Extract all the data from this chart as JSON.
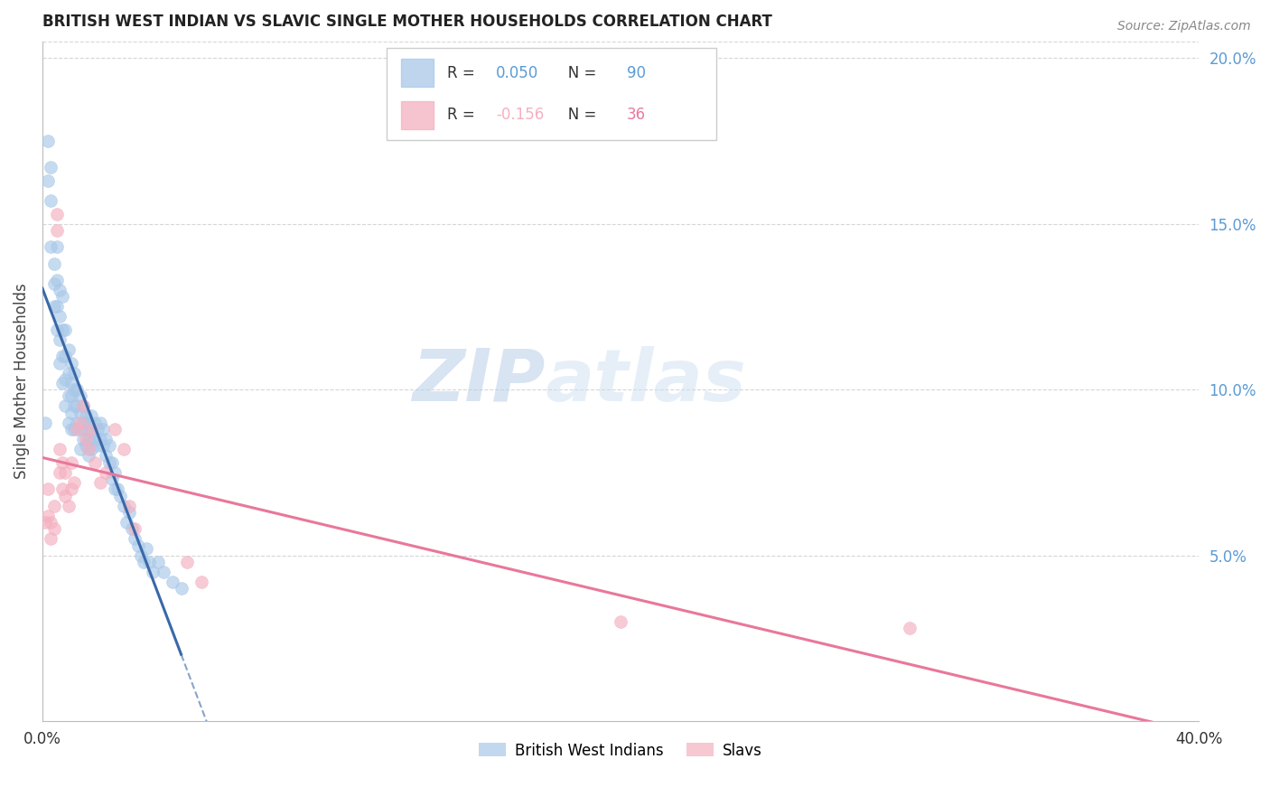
{
  "title": "BRITISH WEST INDIAN VS SLAVIC SINGLE MOTHER HOUSEHOLDS CORRELATION CHART",
  "source": "Source: ZipAtlas.com",
  "ylabel": "Single Mother Households",
  "xlim": [
    0.0,
    0.4
  ],
  "ylim": [
    0.0,
    0.205
  ],
  "xticks": [
    0.0,
    0.05,
    0.1,
    0.15,
    0.2,
    0.25,
    0.3,
    0.35,
    0.4
  ],
  "xticklabels": [
    "0.0%",
    "",
    "",
    "",
    "",
    "",
    "",
    "",
    "40.0%"
  ],
  "yticks_right": [
    0.05,
    0.1,
    0.15,
    0.2
  ],
  "ytick_labels_right": [
    "5.0%",
    "10.0%",
    "15.0%",
    "20.0%"
  ],
  "blue_R": 0.05,
  "blue_N": 90,
  "pink_R": -0.156,
  "pink_N": 36,
  "blue_color": "#a8c8e8",
  "blue_line_color": "#3a68a8",
  "pink_color": "#f4b0c0",
  "pink_line_color": "#e8789a",
  "grid_color": "#cccccc",
  "watermark_zip": "ZIP",
  "watermark_atlas": "atlas",
  "legend_label_blue": "British West Indians",
  "legend_label_pink": "Slavs",
  "blue_scatter_x": [
    0.001,
    0.002,
    0.002,
    0.003,
    0.003,
    0.003,
    0.004,
    0.004,
    0.004,
    0.005,
    0.005,
    0.005,
    0.005,
    0.006,
    0.006,
    0.006,
    0.006,
    0.007,
    0.007,
    0.007,
    0.007,
    0.008,
    0.008,
    0.008,
    0.008,
    0.009,
    0.009,
    0.009,
    0.009,
    0.01,
    0.01,
    0.01,
    0.01,
    0.01,
    0.011,
    0.011,
    0.011,
    0.011,
    0.012,
    0.012,
    0.012,
    0.013,
    0.013,
    0.013,
    0.013,
    0.014,
    0.014,
    0.014,
    0.015,
    0.015,
    0.015,
    0.016,
    0.016,
    0.016,
    0.017,
    0.017,
    0.017,
    0.018,
    0.018,
    0.019,
    0.019,
    0.02,
    0.02,
    0.021,
    0.021,
    0.022,
    0.022,
    0.023,
    0.023,
    0.024,
    0.024,
    0.025,
    0.025,
    0.026,
    0.027,
    0.028,
    0.029,
    0.03,
    0.031,
    0.032,
    0.033,
    0.034,
    0.035,
    0.036,
    0.037,
    0.038,
    0.04,
    0.042,
    0.045,
    0.048
  ],
  "blue_scatter_y": [
    0.09,
    0.175,
    0.163,
    0.167,
    0.157,
    0.143,
    0.138,
    0.132,
    0.125,
    0.143,
    0.133,
    0.125,
    0.118,
    0.13,
    0.122,
    0.115,
    0.108,
    0.128,
    0.118,
    0.11,
    0.102,
    0.118,
    0.11,
    0.103,
    0.095,
    0.112,
    0.105,
    0.098,
    0.09,
    0.108,
    0.102,
    0.098,
    0.093,
    0.088,
    0.105,
    0.1,
    0.095,
    0.088,
    0.1,
    0.095,
    0.09,
    0.098,
    0.093,
    0.088,
    0.082,
    0.095,
    0.09,
    0.085,
    0.092,
    0.088,
    0.083,
    0.09,
    0.085,
    0.08,
    0.092,
    0.087,
    0.082,
    0.09,
    0.085,
    0.088,
    0.083,
    0.09,
    0.085,
    0.088,
    0.083,
    0.085,
    0.08,
    0.083,
    0.078,
    0.078,
    0.073,
    0.075,
    0.07,
    0.07,
    0.068,
    0.065,
    0.06,
    0.063,
    0.058,
    0.055,
    0.053,
    0.05,
    0.048,
    0.052,
    0.048,
    0.045,
    0.048,
    0.045,
    0.042,
    0.04
  ],
  "pink_scatter_x": [
    0.001,
    0.002,
    0.002,
    0.003,
    0.003,
    0.004,
    0.004,
    0.005,
    0.005,
    0.006,
    0.006,
    0.007,
    0.007,
    0.008,
    0.008,
    0.009,
    0.01,
    0.01,
    0.011,
    0.012,
    0.013,
    0.014,
    0.015,
    0.016,
    0.017,
    0.018,
    0.02,
    0.022,
    0.025,
    0.028,
    0.03,
    0.032,
    0.2,
    0.3,
    0.05,
    0.055
  ],
  "pink_scatter_y": [
    0.06,
    0.07,
    0.062,
    0.06,
    0.055,
    0.065,
    0.058,
    0.148,
    0.153,
    0.082,
    0.075,
    0.078,
    0.07,
    0.075,
    0.068,
    0.065,
    0.078,
    0.07,
    0.072,
    0.088,
    0.09,
    0.095,
    0.085,
    0.082,
    0.088,
    0.078,
    0.072,
    0.075,
    0.088,
    0.082,
    0.065,
    0.058,
    0.03,
    0.028,
    0.048,
    0.042
  ]
}
